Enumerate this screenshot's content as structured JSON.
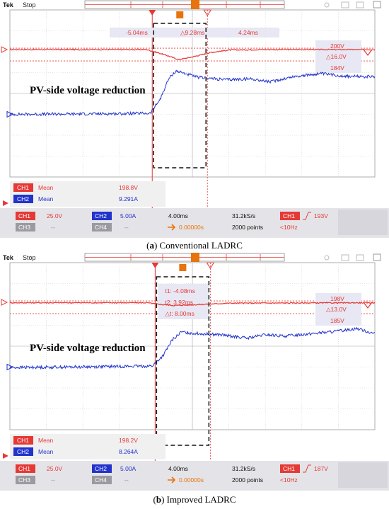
{
  "chart_data": [
    {
      "type": "line",
      "caption_letter": "a",
      "caption_text": " Conventional LADRC",
      "header": {
        "brand": "Tek",
        "status": "Stop"
      },
      "cursor_times": {
        "t1": "-5.04ms",
        "delta": "△9.28ms",
        "t2": "4.24ms"
      },
      "cursor_labels_style": "bar",
      "voltage_cursors": {
        "v1": "200V",
        "delta": "△16.0V",
        "v2": "184V"
      },
      "annotation": "PV-side voltage reduction",
      "measurements": [
        {
          "channel": "CH1",
          "label": "Mean",
          "value": "198.8V"
        },
        {
          "channel": "CH2",
          "label": "Mean",
          "value": "9.291A"
        }
      ],
      "settings": {
        "ch1_name": "CH1",
        "ch1_scale": "25.0V",
        "ch2_name": "CH2",
        "ch2_scale": "5.00A",
        "ch3_name": "CH3",
        "ch3_value": "--",
        "ch4_name": "CH4",
        "ch4_value": "--",
        "timebase": "4.00ms",
        "sample_rate": "31.2kS/s",
        "trigger_channel": "CH1",
        "trigger_level": "193V",
        "position": "0.00000s",
        "record_length": "2000 points",
        "trigger_freq": "<10Hz"
      },
      "time_range_ms": [
        -20,
        20
      ],
      "event_time_ms": -4.4,
      "series": [
        {
          "name": "CH1",
          "color": "#e53935",
          "x_ms": [
            -20,
            -8,
            -5,
            -3,
            -1.5,
            0,
            2,
            4,
            8,
            20
          ],
          "y_div": [
            2.1,
            2.1,
            2.1,
            1.85,
            1.62,
            1.75,
            1.96,
            2.08,
            2.1,
            2.1
          ]
        },
        {
          "name": "CH2",
          "color": "#2233cc",
          "x_ms": [
            -20,
            -12,
            -8,
            -4.6,
            -3.5,
            -2.6,
            -1.8,
            -1.0,
            0.5,
            3.5,
            6.5,
            8.5,
            11,
            14,
            17,
            20
          ],
          "y_div": [
            -1.0,
            -0.98,
            -0.97,
            -0.95,
            -0.25,
            0.7,
            1.08,
            0.98,
            0.78,
            0.66,
            0.7,
            0.55,
            0.8,
            0.95,
            0.82,
            0.8
          ]
        }
      ]
    },
    {
      "type": "line",
      "caption_letter": "b",
      "caption_text": " Improved LADRC",
      "header": {
        "brand": "Tek",
        "status": "Stop"
      },
      "cursor_times": {
        "t1": "t1: -4.08ms",
        "t2": "t2: 3.92ms",
        "delta": "△t: 8.00ms"
      },
      "cursor_labels_style": "stack",
      "voltage_cursors": {
        "v1": "198V",
        "delta": "△13.0V",
        "v2": "185V"
      },
      "annotation": "PV-side voltage reduction",
      "measurements": [
        {
          "channel": "CH1",
          "label": "Mean",
          "value": "198.2V"
        },
        {
          "channel": "CH2",
          "label": "Mean",
          "value": "8.264A"
        }
      ],
      "settings": {
        "ch1_name": "CH1",
        "ch1_scale": "25.0V",
        "ch2_name": "CH2",
        "ch2_scale": "5.00A",
        "ch3_name": "CH3",
        "ch3_value": "--",
        "ch4_name": "CH4",
        "ch4_value": "--",
        "timebase": "4.00ms",
        "sample_rate": "31.2kS/s",
        "trigger_channel": "CH1",
        "trigger_level": "187V",
        "position": "0.00000s",
        "record_length": "2000 points",
        "trigger_freq": "<10Hz"
      },
      "time_range_ms": [
        -20,
        20
      ],
      "event_time_ms": -4.08,
      "series": [
        {
          "name": "CH1",
          "color": "#e53935",
          "x_ms": [
            -20,
            -5,
            -3.5,
            -2,
            0,
            2,
            4,
            20
          ],
          "y_div": [
            2.08,
            2.08,
            2.0,
            1.95,
            1.98,
            2.02,
            2.06,
            2.08
          ]
        },
        {
          "name": "CH2",
          "color": "#2233cc",
          "x_ms": [
            -20,
            -12,
            -8,
            -4.4,
            -3.2,
            -2.2,
            -1.2,
            0,
            3,
            6,
            8,
            10,
            13,
            16,
            18,
            20
          ],
          "y_div": [
            -1.02,
            -0.99,
            -0.97,
            -0.95,
            -0.45,
            0.3,
            0.68,
            0.62,
            0.55,
            0.38,
            0.55,
            0.48,
            0.6,
            0.72,
            0.85,
            0.6
          ]
        }
      ]
    }
  ]
}
